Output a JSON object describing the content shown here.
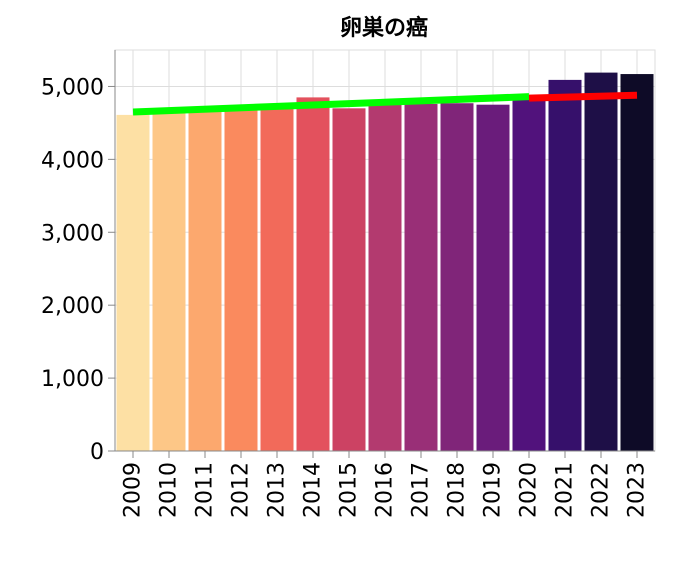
{
  "chart_data": {
    "type": "bar",
    "title": "卵巣の癌",
    "xlabel": "",
    "ylabel": "",
    "categories": [
      "2009",
      "2010",
      "2011",
      "2012",
      "2013",
      "2014",
      "2015",
      "2016",
      "2017",
      "2018",
      "2019",
      "2020",
      "2021",
      "2022",
      "2023"
    ],
    "values": [
      4610,
      4650,
      4700,
      4720,
      4710,
      4850,
      4700,
      4750,
      4760,
      4770,
      4750,
      4870,
      5090,
      5190,
      5170
    ],
    "colors": [
      "#fde0a4",
      "#fdc787",
      "#fca86e",
      "#fa8a5e",
      "#f26a5a",
      "#e3515d",
      "#cc4263",
      "#b33a6f",
      "#992f77",
      "#802579",
      "#6a1c7b",
      "#51127c",
      "#36106b",
      "#1e0f47",
      "#0e0b27"
    ],
    "ylim": [
      0,
      5500
    ],
    "yticks": [
      0,
      1000,
      2000,
      3000,
      4000,
      5000
    ],
    "ytick_labels": [
      "0",
      "1,000",
      "2,000",
      "3,000",
      "4,000",
      "5,000"
    ],
    "grid": true,
    "trend_lines": [
      {
        "name": "trend-2009-2020",
        "color": "#00ff00",
        "x_start": "2009",
        "x_end": "2020",
        "y_start": 4650,
        "y_end": 4860
      },
      {
        "name": "trend-2020-2023",
        "color": "#ff0000",
        "x_start": "2020",
        "x_end": "2023",
        "y_start": 4840,
        "y_end": 4880
      }
    ]
  }
}
